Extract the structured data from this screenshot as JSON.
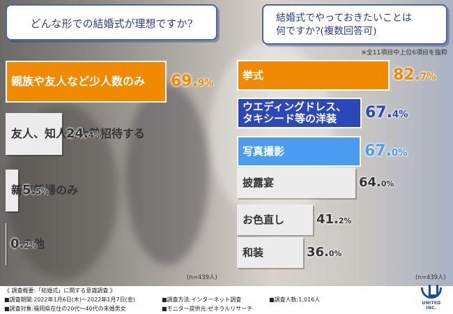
{
  "chart_data": [
    {
      "type": "bar",
      "orientation": "horizontal",
      "title": "どんな形での結婚式が理想ですか?",
      "sample": "(n=439人)",
      "categories": [
        "親族や友人など少人数のみ",
        "友人、知人を大勢招待する",
        "新郎新婦のみ",
        "その他"
      ],
      "values": [
        69.9,
        24.4,
        5.5,
        0.2
      ],
      "value_text": [
        [
          "69.",
          "9%"
        ],
        [
          "24.",
          "4%"
        ],
        [
          "5.",
          "5%"
        ],
        [
          "0.",
          "2%"
        ]
      ],
      "xlim": [
        0,
        100
      ],
      "colors": [
        "#f28a00",
        "#ececec",
        "#ececec",
        "#ececec"
      ]
    },
    {
      "type": "bar",
      "orientation": "horizontal",
      "title": "結婚式でやっておきたいことは 何ですか?(複数回答可)",
      "title_lines": [
        "結婚式でやっておきたいことは",
        "何ですか?(複数回答可)"
      ],
      "note": "※全11項目中上位6項目を抜粋",
      "sample": "(n=439人)",
      "categories": [
        "挙式",
        "ウエディングドレス、タキシード等の洋装",
        "写真撮影",
        "披露宴",
        "お色直し",
        "和装"
      ],
      "category_lines": [
        [
          "挙式"
        ],
        [
          "ウエディングドレス、",
          "タキシード等の洋装"
        ],
        [
          "写真撮影"
        ],
        [
          "披露宴"
        ],
        [
          "お色直し"
        ],
        [
          "和装"
        ]
      ],
      "values": [
        82.7,
        67.4,
        67.0,
        64.0,
        41.2,
        36.0
      ],
      "value_text": [
        [
          "82.",
          "7%"
        ],
        [
          "67.",
          "4%"
        ],
        [
          "67.",
          "0%"
        ],
        [
          "64.",
          "0%"
        ],
        [
          "41.",
          "2%"
        ],
        [
          "36.",
          "0%"
        ]
      ],
      "xlim": [
        0,
        100
      ],
      "colors": [
        "#f28a00",
        "#2c47b8",
        "#4a9df0",
        "#ececec",
        "#ececec",
        "#ececec"
      ]
    }
  ],
  "footer": {
    "line1": "《 調査概要:「結婚式」に関する意識調査 》",
    "period": "■調査期間:2022年1月6日(木)〜2022年1月7日(金)",
    "method": "■調査方法:インターネット調査",
    "count": "■調査人数:1,016人",
    "target": "■調査対象:福岡県在住の20代〜40代の未婚男女",
    "provider": "■モニター提供元:ゼネラルリサーチ"
  },
  "logo_text": "UNITED INC."
}
